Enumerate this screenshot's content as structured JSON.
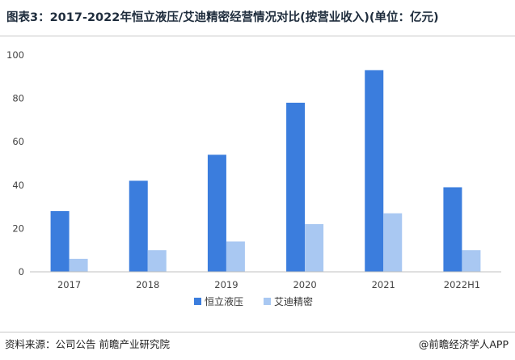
{
  "header": {
    "title": "图表3：2017-2022年恒立液压/艾迪精密经营情况对比(按营业收入)(单位：亿元)"
  },
  "footer": {
    "source": "资料来源：公司公告 前瞻产业研究院",
    "brand": "@前瞻经济学人APP"
  },
  "colors": {
    "series1": "#3b7ddd",
    "series2": "#a9c8f2",
    "axis": "#bfbfbf"
  },
  "chart_data": {
    "type": "bar",
    "title": "图表3：2017-2022年恒立液压/艾迪精密经营情况对比(按营业收入)(单位：亿元)",
    "categories": [
      "2017",
      "2018",
      "2019",
      "2020",
      "2021",
      "2022H1"
    ],
    "series": [
      {
        "name": "恒立液压",
        "values": [
          28,
          42,
          54,
          78,
          93,
          39
        ]
      },
      {
        "name": "艾迪精密",
        "values": [
          6,
          10,
          14,
          22,
          27,
          10
        ]
      }
    ],
    "yticks": [
      "0",
      "20",
      "40",
      "60",
      "80",
      "100"
    ],
    "ylim": [
      0,
      100
    ],
    "xlabel": "",
    "ylabel": "",
    "grid": false,
    "legend": "bottom-center"
  }
}
